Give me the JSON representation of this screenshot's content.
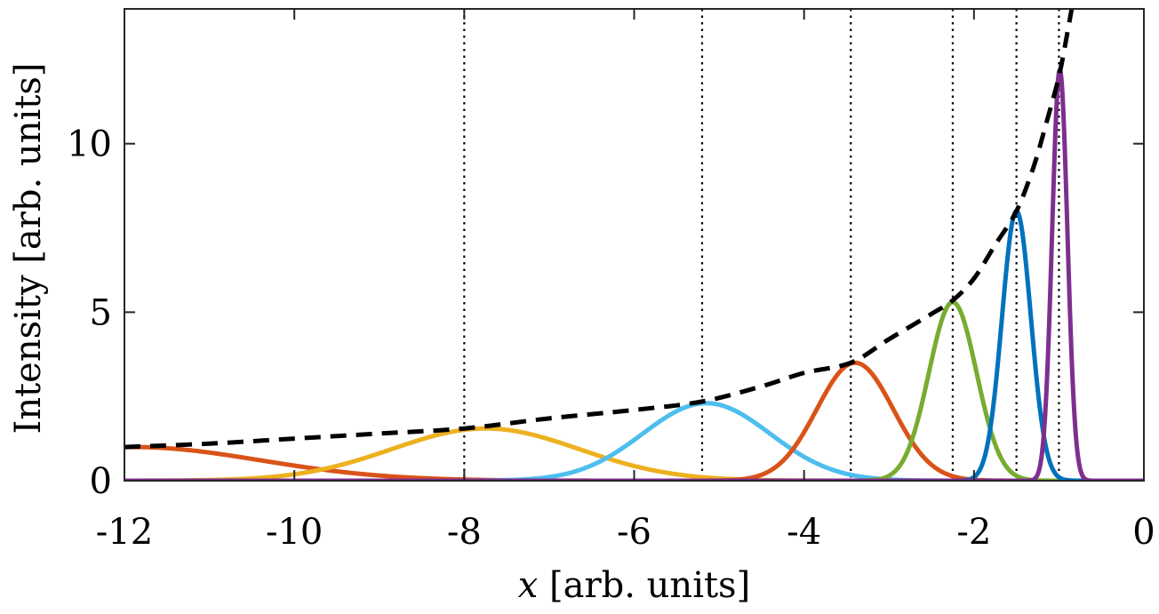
{
  "chart_data": {
    "type": "line",
    "xlabel_var": "x",
    "xlabel_rest": " [arb. units]",
    "ylabel": "Intensity [arb. units]",
    "xlim": [
      -12,
      0
    ],
    "ylim": [
      0,
      14
    ],
    "x_ticks": [
      "-12",
      "-10",
      "-8",
      "-6",
      "-4",
      "-2",
      "0"
    ],
    "x_tick_values": [
      -12,
      -10,
      -8,
      -6,
      -4,
      -2,
      0
    ],
    "y_ticks": [
      "0",
      "5",
      "10"
    ],
    "y_tick_values": [
      0,
      5,
      10
    ],
    "grid": false,
    "legend": "none",
    "dotted_verticals_x": [
      -8,
      -5.2,
      -3.45,
      -2.25,
      -1.5,
      -1.0
    ],
    "envelope": {
      "style": "dashed",
      "color": "#000000",
      "points": [
        {
          "x": -12,
          "y": 1.0
        },
        {
          "x": -11,
          "y": 1.1
        },
        {
          "x": -10,
          "y": 1.25
        },
        {
          "x": -9,
          "y": 1.4
        },
        {
          "x": -8,
          "y": 1.55
        },
        {
          "x": -7,
          "y": 1.85
        },
        {
          "x": -6,
          "y": 2.1
        },
        {
          "x": -5.2,
          "y": 2.35
        },
        {
          "x": -4.5,
          "y": 2.8
        },
        {
          "x": -4,
          "y": 3.2
        },
        {
          "x": -3.45,
          "y": 3.5
        },
        {
          "x": -3.0,
          "y": 4.2
        },
        {
          "x": -2.5,
          "y": 4.95
        },
        {
          "x": -2.25,
          "y": 5.35
        },
        {
          "x": -2.0,
          "y": 6.0
        },
        {
          "x": -1.75,
          "y": 7.0
        },
        {
          "x": -1.5,
          "y": 8.0
        },
        {
          "x": -1.3,
          "y": 9.3
        },
        {
          "x": -1.15,
          "y": 10.6
        },
        {
          "x": -1.0,
          "y": 12.0
        },
        {
          "x": -0.9,
          "y": 13.3
        },
        {
          "x": -0.85,
          "y": 14.0
        }
      ]
    },
    "series": [
      {
        "color": "#D95319",
        "shape": "gaussian",
        "center": -11.9,
        "peak": 1.0,
        "width": 1.5
      },
      {
        "color": "#EDB120",
        "shape": "gaussian",
        "center": -7.75,
        "peak": 1.55,
        "width": 1.1
      },
      {
        "color": "#4DBEEE",
        "shape": "gaussian",
        "center": -5.15,
        "peak": 2.3,
        "width": 0.75
      },
      {
        "color": "#D95319",
        "shape": "gaussian",
        "center": -3.4,
        "peak": 3.5,
        "width": 0.45
      },
      {
        "color": "#77AC30",
        "shape": "gaussian",
        "center": -2.25,
        "peak": 5.3,
        "width": 0.28
      },
      {
        "color": "#0072BD",
        "shape": "gaussian",
        "center": -1.5,
        "peak": 8.0,
        "width": 0.17
      },
      {
        "color": "#7E2F8E",
        "shape": "gaussian",
        "center": -0.99,
        "peak": 12.2,
        "width": 0.09
      }
    ]
  }
}
